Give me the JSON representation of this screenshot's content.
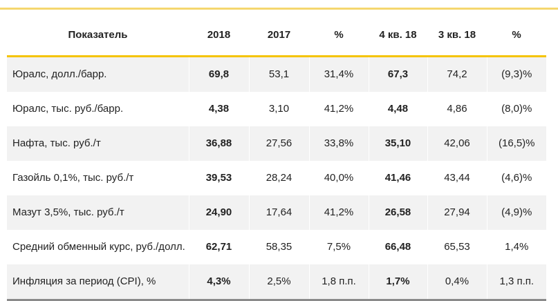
{
  "headers": [
    "Показатель",
    "2018",
    "2017",
    "%",
    "4 кв. 18",
    "3 кв. 18",
    "%"
  ],
  "rows": [
    [
      "Юралс, долл./барр.",
      "69,8",
      "53,1",
      "31,4%",
      "67,3",
      "74,2",
      "(9,3)%"
    ],
    [
      "Юралс, тыс. руб./барр.",
      "4,38",
      "3,10",
      "41,2%",
      "4,48",
      "4,86",
      "(8,0)%"
    ],
    [
      "Нафта, тыс. руб./т",
      "36,88",
      "27,56",
      "33,8%",
      "35,10",
      "42,06",
      "(16,5)%"
    ],
    [
      "Газойль 0,1%, тыс. руб./т",
      "39,53",
      "28,24",
      "40,0%",
      "41,46",
      "43,44",
      "(4,6)%"
    ],
    [
      "Мазут 3,5%, тыс. руб./т",
      "24,90",
      "17,64",
      "41,2%",
      "26,58",
      "27,94",
      "(4,9)%"
    ],
    [
      "Средний обменный курс, руб./долл.",
      "62,71",
      "58,35",
      "7,5%",
      "66,48",
      "65,53",
      "1,4%"
    ],
    [
      "Инфляция за период (CPI), %",
      "4,3%",
      "2,5%",
      "1,8 п.п.",
      "1,7%",
      "0,4%",
      "1,3 п.п."
    ]
  ]
}
